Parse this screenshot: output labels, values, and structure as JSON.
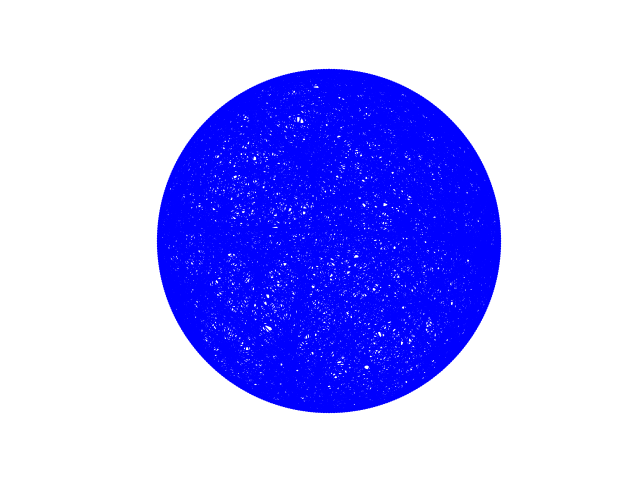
{
  "diagram": {
    "type": "circular-graph",
    "edge_color": "#0000ff",
    "node_color": "#0000ff",
    "background": "#ffffff",
    "labels_visible": false,
    "axes_visible": false,
    "title": ""
  }
}
